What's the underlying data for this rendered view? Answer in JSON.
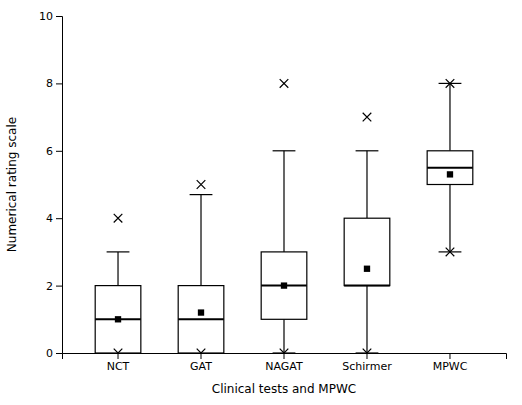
{
  "chart_data": {
    "type": "box",
    "categories": [
      "NCT",
      "GAT",
      "NAGAT",
      "Schirmer",
      "MPWC"
    ],
    "boxes": [
      {
        "q1": 0,
        "median": 1,
        "q3": 2,
        "mean": 1.0,
        "whislo": 0,
        "whishi": 3,
        "fliers": [
          0,
          4
        ]
      },
      {
        "q1": 0,
        "median": 1,
        "q3": 2,
        "mean": 1.2,
        "whislo": 0,
        "whishi": 4.7,
        "fliers": [
          0,
          5
        ]
      },
      {
        "q1": 1,
        "median": 2,
        "q3": 3,
        "mean": 2.0,
        "whislo": 0,
        "whishi": 6,
        "fliers": [
          0,
          8
        ]
      },
      {
        "q1": 2,
        "median": 2,
        "q3": 4,
        "mean": 2.5,
        "whislo": 0,
        "whishi": 6,
        "fliers": [
          0,
          7
        ]
      },
      {
        "q1": 5,
        "median": 5.5,
        "q3": 6,
        "mean": 5.3,
        "whislo": 3,
        "whishi": 8,
        "fliers": [
          3,
          8
        ]
      }
    ],
    "ylabel": "Numerical rating scale",
    "xlabel": "Clinical tests and MPWC",
    "ylim": [
      0,
      10
    ],
    "yticks": [
      0,
      2,
      4,
      6,
      8,
      10
    ],
    "color": "#000000"
  }
}
